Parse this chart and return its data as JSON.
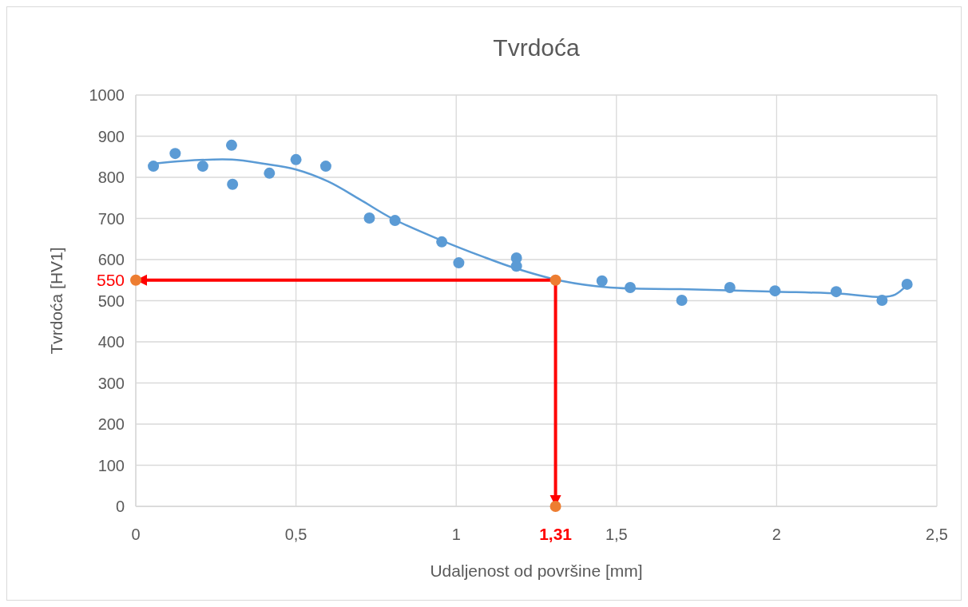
{
  "chart_data": {
    "type": "scatter",
    "title": "Tvrdoća",
    "xlabel": "Udaljenost od površine [mm]",
    "ylabel": "Tvrdoća [HV1]",
    "xlim": [
      0,
      2.5
    ],
    "xticks": [
      0,
      {
        "value": 0.5,
        "label": "0,5"
      },
      1,
      {
        "value": 1.5,
        "label": "1,5"
      },
      2,
      {
        "value": 2.5,
        "label": "2,5"
      }
    ],
    "ylim": [
      0,
      1000
    ],
    "yticks": [
      0,
      100,
      200,
      300,
      400,
      500,
      600,
      700,
      800,
      900,
      1000
    ],
    "grid": true,
    "marker": "circle",
    "series": [
      {
        "color": "#5b9bd5",
        "x": [
          0.055,
          0.123,
          0.209,
          0.299,
          0.302,
          0.417,
          0.5,
          0.593,
          0.729,
          0.809,
          0.955,
          1.008,
          1.188,
          1.188,
          1.455,
          1.543,
          1.704,
          1.854,
          1.995,
          2.186,
          2.329,
          2.407
        ],
        "values": [
          827,
          858,
          827,
          878,
          783,
          810,
          843,
          827,
          701,
          695,
          643,
          592,
          604,
          584,
          548,
          532,
          501,
          532,
          524,
          522,
          501,
          540
        ]
      },
      {
        "type": "line",
        "color": "#5b9bd5",
        "marker": "none",
        "x": [
          0.055,
          0.15,
          0.3,
          0.4,
          0.5,
          0.6,
          0.7,
          0.8,
          0.95,
          1.08,
          1.18,
          1.33,
          1.48,
          1.7,
          2.0,
          2.2,
          2.33,
          2.37,
          2.407
        ],
        "values": [
          833,
          840,
          843,
          833,
          819,
          790,
          746,
          700,
          648,
          608,
          580,
          548,
          532,
          528,
          522,
          517,
          509,
          515,
          538
        ]
      },
      {
        "color": "#ed7d31",
        "x": [
          0,
          1.31,
          1.31
        ],
        "values": [
          550,
          550,
          0
        ]
      }
    ],
    "annotations": [
      {
        "text": "550",
        "x": 0,
        "y": 550
      },
      {
        "text": "1,31",
        "x": 1.31,
        "y": 0
      }
    ]
  }
}
